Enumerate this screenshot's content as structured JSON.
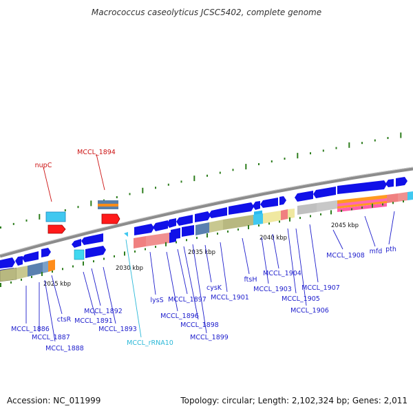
{
  "title": "Macrococcus caseolyticus JCSC5402, complete genome",
  "footer": {
    "accession": "Accession: NC_011999",
    "summary": "Topology: circular; Length: 2,102,324 bp; Genes: 2,011"
  },
  "colors": {
    "backbone": "#8c8c8c",
    "tick": "#2d7d1d",
    "gene": "#0b0bdf",
    "label_gene": "#1c1ccc",
    "label_red": "#cc1111",
    "label_rna": "#2ab8d8"
  },
  "scale_labels": [
    "2025 kbp",
    "2030 kbp",
    "2035 kbp",
    "2040 kbp",
    "2045 kbp"
  ],
  "gene_labels": [
    {
      "text": "nupC",
      "color": "#cc1111"
    },
    {
      "text": "MCCL_1894",
      "color": "#cc1111"
    },
    {
      "text": "MCCL_1886",
      "color": "#1c1ccc"
    },
    {
      "text": "MCCL_1887",
      "color": "#1c1ccc"
    },
    {
      "text": "MCCL_1888",
      "color": "#1c1ccc"
    },
    {
      "text": "ctsR",
      "color": "#1c1ccc"
    },
    {
      "text": "MCCL_1891",
      "color": "#1c1ccc"
    },
    {
      "text": "MCCL_1892",
      "color": "#1c1ccc"
    },
    {
      "text": "MCCL_1893",
      "color": "#1c1ccc"
    },
    {
      "text": "MCCL_rRNA10",
      "color": "#2ab8d8"
    },
    {
      "text": "lysS",
      "color": "#1c1ccc"
    },
    {
      "text": "MCCL_1896",
      "color": "#1c1ccc"
    },
    {
      "text": "MCCL_1897",
      "color": "#1c1ccc"
    },
    {
      "text": "MCCL_1898",
      "color": "#1c1ccc"
    },
    {
      "text": "MCCL_1899",
      "color": "#1c1ccc"
    },
    {
      "text": "cysK",
      "color": "#1c1ccc"
    },
    {
      "text": "MCCL_1901",
      "color": "#1c1ccc"
    },
    {
      "text": "ftsH",
      "color": "#1c1ccc"
    },
    {
      "text": "MCCL_1903",
      "color": "#1c1ccc"
    },
    {
      "text": "MCCL_1904",
      "color": "#1c1ccc"
    },
    {
      "text": "MCCL_1905",
      "color": "#1c1ccc"
    },
    {
      "text": "MCCL_1906",
      "color": "#1c1ccc"
    },
    {
      "text": "MCCL_1907",
      "color": "#1c1ccc"
    },
    {
      "text": "MCCL_1908",
      "color": "#1c1ccc"
    },
    {
      "text": "mfd",
      "color": "#1c1ccc"
    },
    {
      "text": "pth",
      "color": "#1c1ccc"
    }
  ]
}
